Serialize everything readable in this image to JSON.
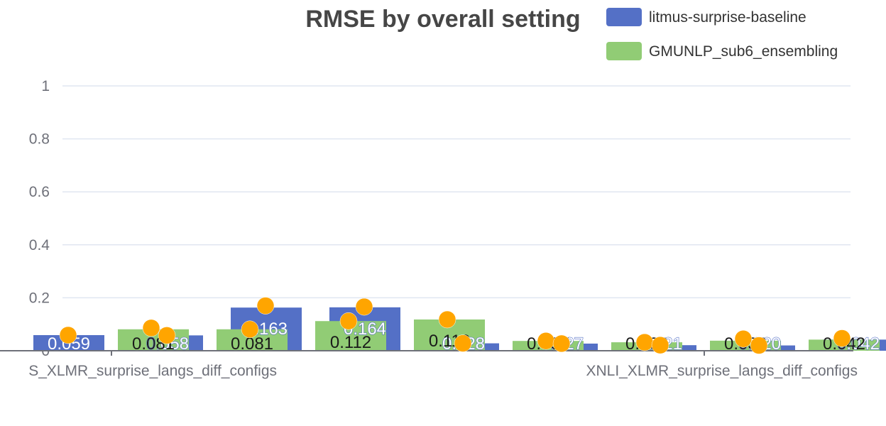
{
  "chart_data": {
    "type": "bar",
    "title": "RMSE by overall setting",
    "ylim": [
      0,
      1
    ],
    "yticks": [
      "0",
      "0.2",
      "0.4",
      "0.6",
      "0.8",
      "1"
    ],
    "grid": true,
    "legend_position": "top-right",
    "categories": [
      "XNLI_XLMR_surprise_langs_diff_configs",
      "",
      "",
      "",
      "",
      "",
      "",
      "",
      "XNLI_XLMR_surprise_langs_diff_configs"
    ],
    "visible_category_labels": [
      "S_XLMR_surprise_langs_diff_configs",
      "XNLI_XLMR_surprise_langs_diff_configs"
    ],
    "series": [
      {
        "name": "litmus-surprise-baseline",
        "color": "#5470c6",
        "values": [
          0.059,
          0.058,
          0.163,
          0.164,
          0.028,
          0.027,
          0.021,
          0.02,
          0.042
        ],
        "labels": [
          "0.059",
          "0.058",
          "0.163",
          "0.164",
          "0.028",
          "0.027",
          "0.021",
          "0.020",
          "0.042"
        ]
      },
      {
        "name": "GMUNLP_sub6_ensembling",
        "color": "#91cc75",
        "values": [
          null,
          0.081,
          0.081,
          0.112,
          0.118,
          0.037,
          0.032,
          0.038,
          0.042
        ],
        "labels": [
          "",
          "0.081",
          "0.081",
          "0.112",
          "0.118",
          "0.037",
          "0.032",
          "0.038",
          "0.042"
        ]
      }
    ],
    "markers": {
      "color": "#ffa500",
      "values": [
        [
          0.059,
          0.086,
          0.081,
          0.112,
          0.118,
          0.037,
          0.032,
          0.045,
          0.047
        ],
        [
          null,
          0.058,
          0.17,
          0.166,
          0.028,
          0.027,
          0.021,
          0.02,
          null
        ]
      ]
    }
  }
}
